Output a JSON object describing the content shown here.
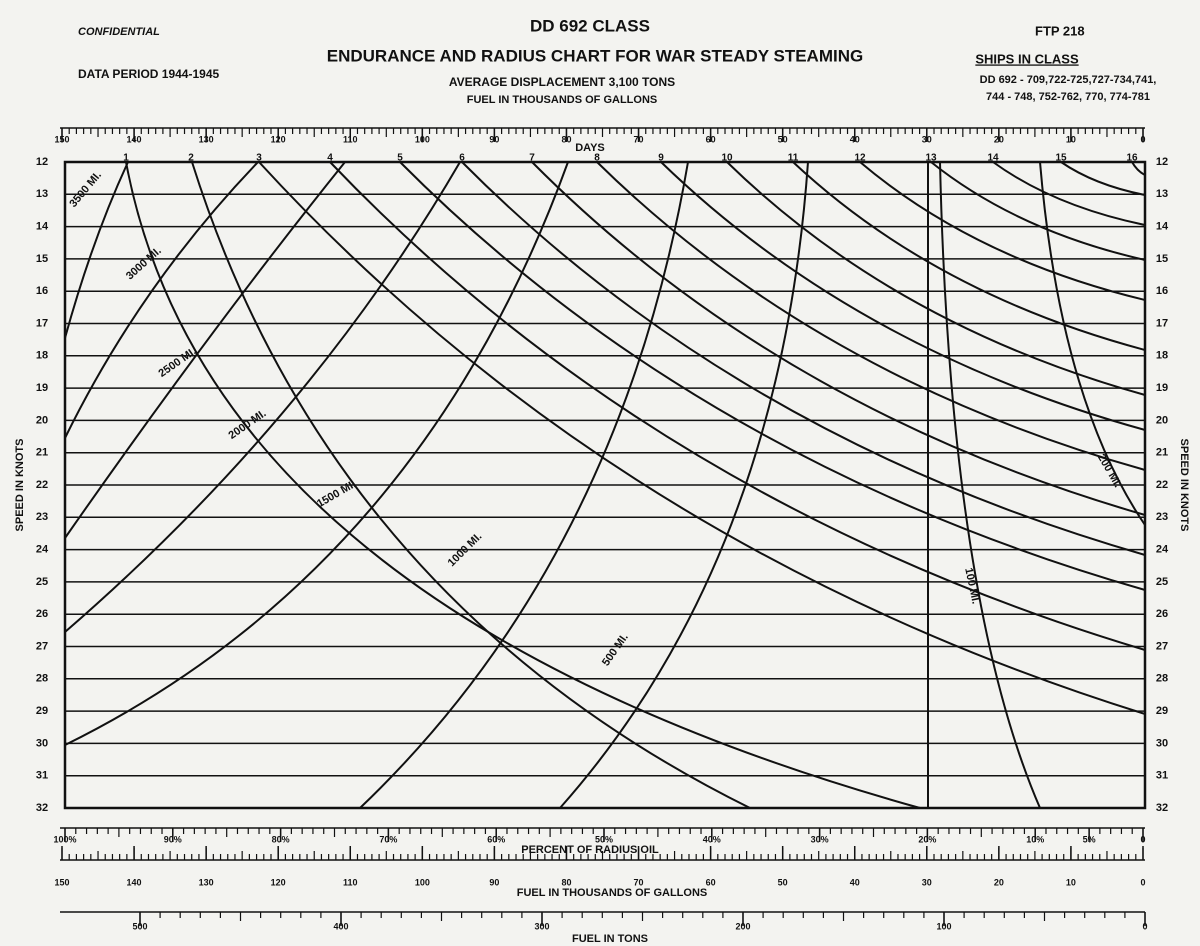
{
  "header": {
    "confidential": "CONFIDENTIAL",
    "class": "DD 692  CLASS",
    "ftp": "FTP 218",
    "title": "ENDURANCE AND RADIUS CHART FOR WAR STEADY STEAMING",
    "data_period": "DATA PERIOD  1944-1945",
    "displacement": "AVERAGE DISPLACEMENT    3,100 TONS",
    "fuel_units": "FUEL  IN  THOUSANDS  OF  GALLONS",
    "ships_title": "SHIPS IN CLASS",
    "ships_lines": [
      "DD 692 - 709,722-725,727-734,741,",
      "744 - 748, 752-762, 770, 774-781"
    ]
  },
  "scales": {
    "fuel_top": {
      "lim": [
        150,
        0
      ],
      "ticks": [
        150,
        140,
        130,
        120,
        110,
        100,
        90,
        80,
        70,
        60,
        50,
        40,
        30,
        20,
        10,
        0
      ]
    },
    "days": {
      "title": "DAYS",
      "values": [
        1,
        2,
        3,
        4,
        5,
        6,
        7,
        8,
        9,
        10,
        11,
        12,
        13,
        14,
        15,
        16
      ]
    },
    "speed": {
      "title": "SPEED IN KNOTS",
      "lim": [
        12,
        32
      ],
      "ticks": [
        12,
        13,
        14,
        15,
        16,
        17,
        18,
        19,
        20,
        21,
        22,
        23,
        24,
        25,
        26,
        27,
        28,
        29,
        30,
        31,
        32
      ]
    },
    "percent": {
      "title": "PERCENT  OF  RADIUS  OIL",
      "lim": [
        100,
        0
      ],
      "ticks": [
        {
          "value": 100,
          "label": "100%"
        },
        {
          "value": 90,
          "label": "90%"
        },
        {
          "value": 80,
          "label": "80%"
        },
        {
          "value": 70,
          "label": "70%"
        },
        {
          "value": 60,
          "label": "60%"
        },
        {
          "value": 50,
          "label": "50%"
        },
        {
          "value": 40,
          "label": "40%"
        },
        {
          "value": 30,
          "label": "30%"
        },
        {
          "value": 20,
          "label": "20%"
        },
        {
          "value": 10,
          "label": "10%"
        },
        {
          "value": 5,
          "label": "5%"
        },
        0
      ]
    },
    "fuel_bottom": {
      "title": "FUEL  IN  THOUSANDS  OF  GALLONS",
      "lim": [
        150,
        0
      ],
      "ticks": [
        150,
        140,
        130,
        120,
        110,
        100,
        90,
        80,
        70,
        60,
        50,
        40,
        30,
        20,
        10,
        0
      ]
    },
    "tons": {
      "title": "FUEL  IN  TONS",
      "lim": [
        500,
        0
      ],
      "ticks": [
        500,
        400,
        300,
        200,
        100,
        0
      ]
    }
  },
  "curve_labels": [
    "3500 MI.",
    "3000 MI.",
    "2500 MI.",
    "2000 MI.",
    "1500 MI.",
    "1000 MI.",
    "500 MI.",
    "100 MI.",
    "200 MI."
  ]
}
